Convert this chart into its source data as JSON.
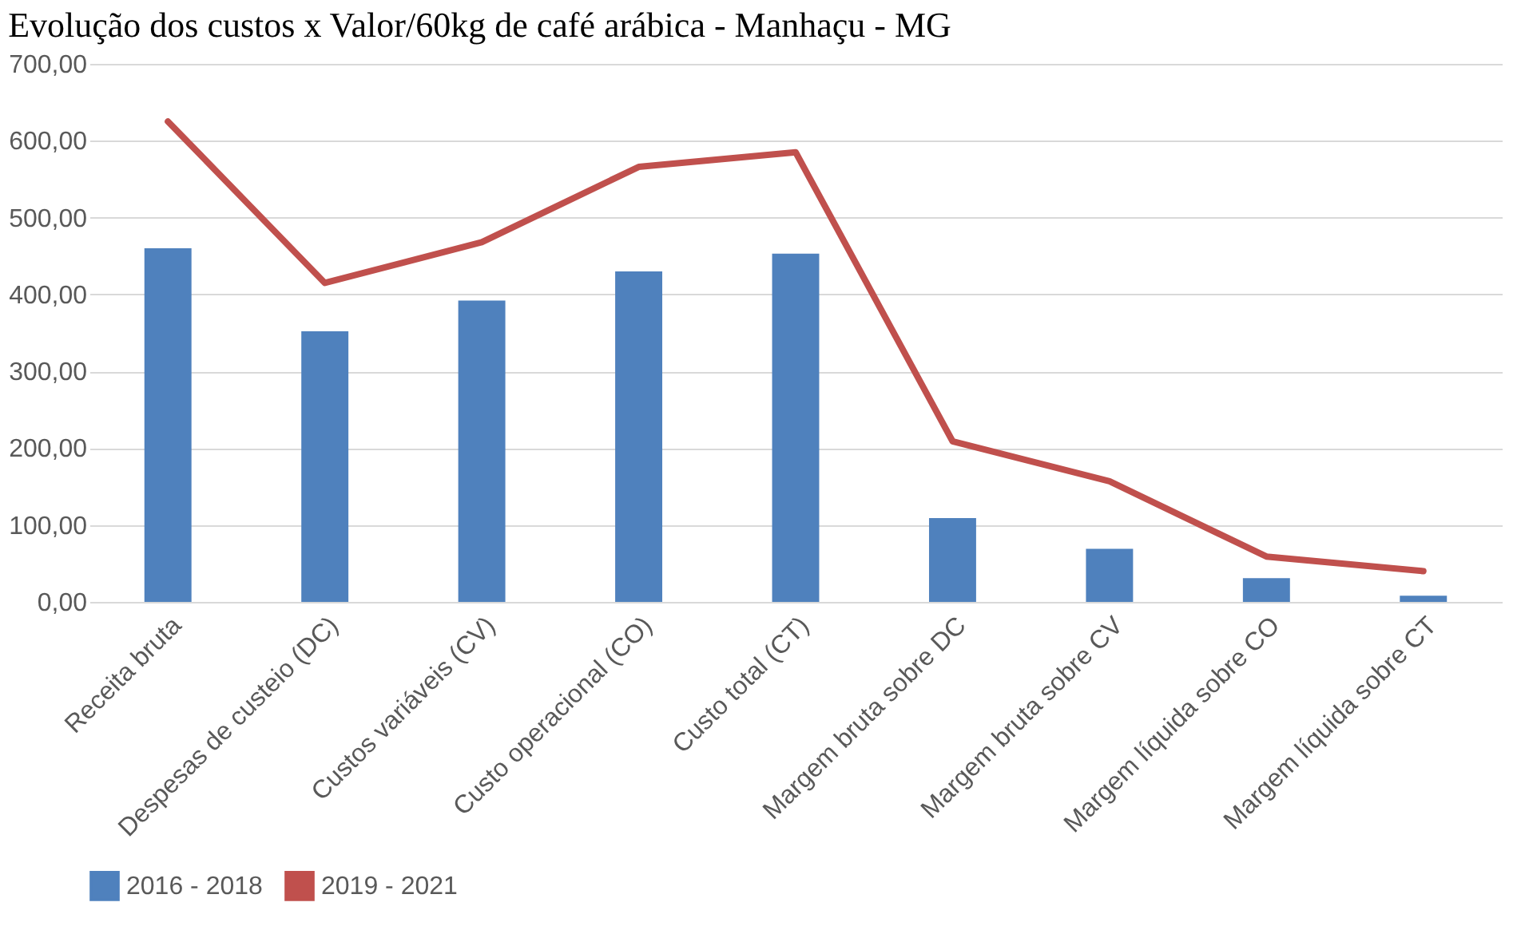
{
  "chart_data": {
    "type": "bar",
    "title": "Evolução dos custos x Valor/60kg de café arábica - Manhaçu - MG",
    "categories": [
      "Receita bruta",
      "Despesas de custeio (DC)",
      "Custos variáveis (CV)",
      "Custo operacional (CO)",
      "Custo total (CT)",
      "Margem bruta sobre DC",
      "Margem bruta sobre CV",
      "Margem líquida sobre CO",
      "Margem líquida sobre CT"
    ],
    "series": [
      {
        "name": "2016 - 2018",
        "color": "#4f81bd",
        "values": [
          460,
          352,
          392,
          430,
          453,
          109,
          69,
          31,
          8
        ]
      },
      {
        "name": "2019 - 2021",
        "type": "line",
        "color": "#c0504d",
        "values": [
          625,
          415,
          468,
          566,
          585,
          209,
          157,
          59,
          40
        ]
      }
    ],
    "ylim": [
      0,
      700
    ],
    "yticks": [
      {
        "value": 0,
        "label": "0,00"
      },
      {
        "value": 100,
        "label": "100,00"
      },
      {
        "value": 200,
        "label": "200,00"
      },
      {
        "value": 300,
        "label": "300,00"
      },
      {
        "value": 400,
        "label": "400,00"
      },
      {
        "value": 500,
        "label": "500,00"
      },
      {
        "value": 600,
        "label": "600,00"
      },
      {
        "value": 700,
        "label": "700,00"
      }
    ],
    "grid": "y",
    "legend": "bottom"
  }
}
